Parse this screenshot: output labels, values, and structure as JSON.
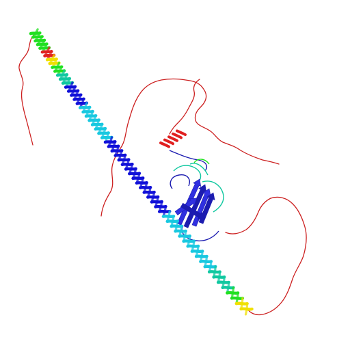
{
  "image": {
    "subject": "protein-structure-cartoon",
    "background_color": "#ffffff",
    "colors": {
      "coil_red": "#cc1f1f",
      "helix_blue": "#1010d8",
      "helix_blue_dark": "#0a0a90",
      "helix_cyan": "#18c8e0",
      "helix_teal": "#10c8a0",
      "helix_green": "#20e020",
      "helix_yellow": "#f0e000",
      "helix_red": "#e02020",
      "sheet_blue": "#3030e0",
      "sheet_blue_dark": "#1c1cb0"
    }
  }
}
